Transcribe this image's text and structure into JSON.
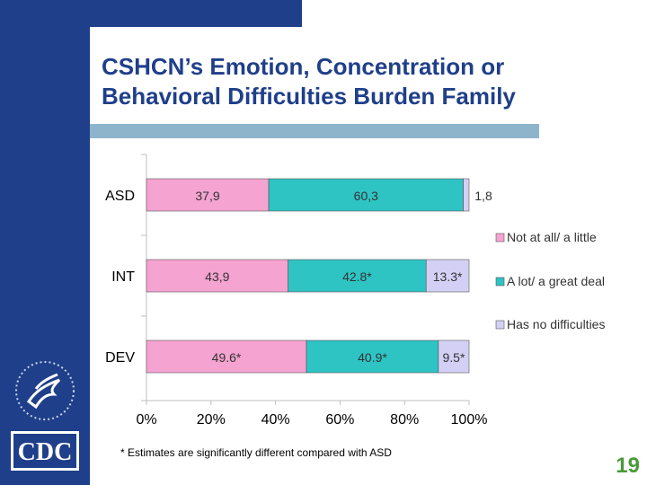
{
  "slide": {
    "title_line1": "CSHCN’s Emotion, Concentration or",
    "title_line2": "Behavioral Difficulties Burden Family",
    "page_number": "19",
    "logo_text": "CDC"
  },
  "colors": {
    "header_blue": "#1f3f8a",
    "accent_bar": "#8eb4cc",
    "series_1": "#f5a3d0",
    "series_2": "#2ec4c4",
    "series_3": "#d4d0f5",
    "page_number": "#4a9a3a"
  },
  "chart_data": {
    "type": "bar",
    "orientation": "horizontal",
    "stacked": "percent",
    "categories": [
      "ASD",
      "INT",
      "DEV"
    ],
    "series": [
      {
        "name": "Not at all/ a little",
        "values": [
          37.9,
          43.9,
          49.6
        ],
        "labels": [
          "37,9",
          "43,9",
          "49.6*"
        ]
      },
      {
        "name": "A lot/ a great deal",
        "values": [
          60.3,
          42.8,
          40.9
        ],
        "labels": [
          "60,3",
          "42.8*",
          "40.9*"
        ]
      },
      {
        "name": "Has no difficulties",
        "values": [
          1.8,
          13.3,
          9.5
        ],
        "labels": [
          "1,8",
          "13.3*",
          "9.5*"
        ]
      }
    ],
    "x_ticks": [
      "0%",
      "20%",
      "40%",
      "60%",
      "80%",
      "100%"
    ],
    "xlim": [
      0,
      100
    ],
    "legend_position": "right",
    "footnote": "* Estimates are significantly different compared with ASD"
  }
}
